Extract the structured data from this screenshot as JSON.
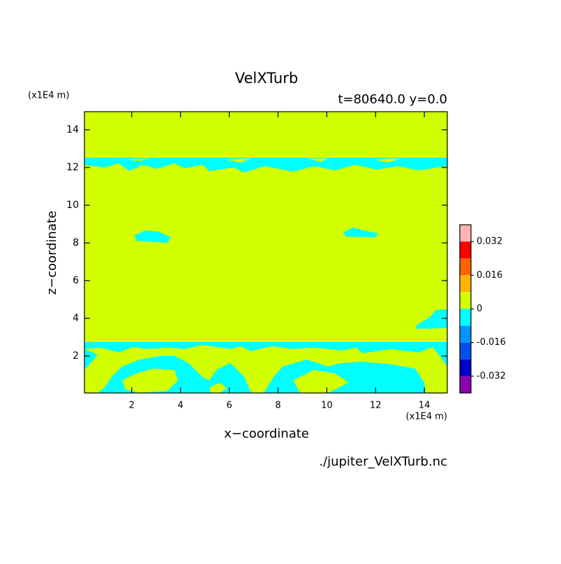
{
  "chart_data": {
    "type": "contour",
    "title": "VelXTurb",
    "subtitle": "t=80640.0 y=0.0",
    "x_label": "x−coordinate",
    "y_label": "z−coordinate",
    "x_unit": "(x1E4 m)",
    "y_unit": "(x1E4 m)",
    "source": "./jupiter_VelXTurb.nc",
    "xlim": [
      0.06,
      14.94
    ],
    "ylim": [
      0.04,
      14.96
    ],
    "xticks": [
      2,
      4,
      6,
      8,
      10,
      12,
      14
    ],
    "yticks": [
      2,
      4,
      6,
      8,
      10,
      12,
      14
    ],
    "colorbar": {
      "levels": [
        -0.04,
        -0.032,
        -0.024,
        -0.016,
        -0.008,
        0,
        0.008,
        0.016,
        0.024,
        0.032,
        0.04
      ],
      "colors": [
        "#8c00b4",
        "#0000c8",
        "#0050f0",
        "#0096ff",
        "#00ffff",
        "#d2ff00",
        "#ffb400",
        "#ff6400",
        "#ff0000",
        "#ffb4b4"
      ],
      "ticks": [
        -0.032,
        -0.016,
        0,
        0.016,
        0.032
      ]
    }
  }
}
